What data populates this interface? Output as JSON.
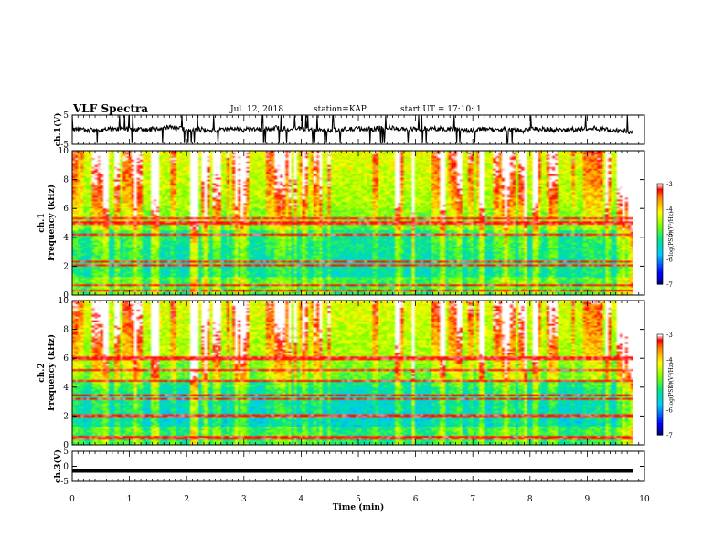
{
  "header": {
    "title": "VLF Spectra",
    "date": "Jul. 12, 2018",
    "station": "station=KAP",
    "start": "start UT = 17:10: 1"
  },
  "chart_data": [
    {
      "type": "line",
      "panel": "ch1-waveform",
      "ylabel": "ch.1(V)",
      "ylim": [
        -5,
        5
      ],
      "yticks": [
        "5",
        "-5"
      ],
      "xlim": [
        0,
        10
      ],
      "series": [
        {
          "values_note_level": 0.0,
          "amplitude": 1.3
        }
      ]
    },
    {
      "type": "heatmap",
      "panel": "ch1-spectrogram",
      "ylabel": "ch.1",
      "ylabel2": "Frequency (kHz)",
      "ylim": [
        0,
        10
      ],
      "yticks": [
        "0",
        "2",
        "4",
        "6",
        "8",
        "10"
      ],
      "xlim": [
        0,
        10
      ],
      "colorbar": {
        "label": "log(PSD)(V²/Hz)",
        "ticks": [
          "-3",
          "-4",
          "-5",
          "-6",
          "-7"
        ],
        "range": [
          -7,
          -3
        ]
      }
    },
    {
      "type": "heatmap",
      "panel": "ch2-spectrogram",
      "ylabel": "ch.2",
      "ylabel2": "Frequency (kHz)",
      "ylim": [
        0,
        10
      ],
      "yticks": [
        "0",
        "2",
        "4",
        "6",
        "8",
        "10"
      ],
      "xlim": [
        0,
        10
      ],
      "colorbar": {
        "label": "log(PSD)(V²/Hz)",
        "ticks": [
          "-3",
          "-4",
          "-5",
          "-6",
          "-7"
        ],
        "range": [
          -7,
          -3
        ]
      }
    },
    {
      "type": "line",
      "panel": "ch3-waveform",
      "ylabel": "ch.3(V)",
      "ylim": [
        -5,
        5
      ],
      "yticks": [
        "5",
        "0",
        "-5"
      ],
      "xlim": [
        0,
        10
      ],
      "series": [
        {
          "constant_value": -1.5
        }
      ]
    }
  ],
  "xaxis": {
    "label": "Time (min)",
    "ticks": [
      "0",
      "1",
      "2",
      "3",
      "4",
      "5",
      "6",
      "7",
      "8",
      "9",
      "10"
    ]
  },
  "colors": {
    "scale": [
      "#000080",
      "#0000ff",
      "#00c8ff",
      "#00ff80",
      "#80ff00",
      "#ffff00",
      "#ff8000",
      "#ff0000",
      "#ffffff"
    ]
  }
}
